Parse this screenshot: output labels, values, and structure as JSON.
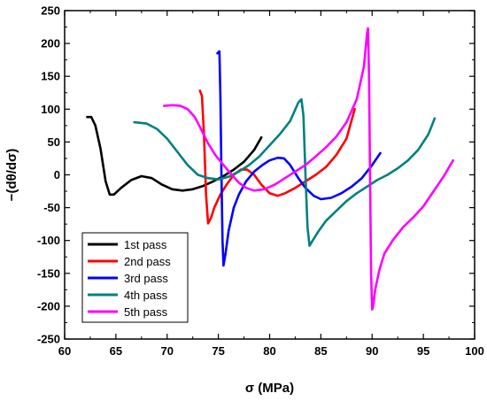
{
  "chart_data": {
    "type": "line",
    "title": "",
    "xlabel": "σ (MPa)",
    "ylabel": "−(dθ/dσ)",
    "xlim": [
      60,
      100
    ],
    "ylim": [
      -250,
      250
    ],
    "xticks": [
      60,
      65,
      70,
      75,
      80,
      85,
      90,
      95,
      100
    ],
    "yticks": [
      -250,
      -200,
      -150,
      -100,
      -50,
      0,
      50,
      100,
      150,
      200,
      250
    ],
    "grid": false,
    "legend_position": "bottom-left",
    "series": [
      {
        "name": "1st pass",
        "color": "#000000",
        "points": [
          [
            62.2,
            88
          ],
          [
            62.6,
            88
          ],
          [
            63.0,
            75
          ],
          [
            63.5,
            40
          ],
          [
            64.0,
            -10
          ],
          [
            64.4,
            -30
          ],
          [
            64.8,
            -30
          ],
          [
            65.5,
            -20
          ],
          [
            66.5,
            -8
          ],
          [
            67.5,
            -2
          ],
          [
            68.5,
            -5
          ],
          [
            69.5,
            -15
          ],
          [
            70.5,
            -22
          ],
          [
            71.5,
            -24
          ],
          [
            72.5,
            -22
          ],
          [
            73.5,
            -17
          ],
          [
            74.5,
            -10
          ],
          [
            75.5,
            -2
          ],
          [
            76.5,
            8
          ],
          [
            77.5,
            20
          ],
          [
            78.5,
            38
          ],
          [
            79.2,
            57
          ]
        ]
      },
      {
        "name": "2nd pass",
        "color": "#ff0000",
        "points": [
          [
            73.2,
            128
          ],
          [
            73.4,
            120
          ],
          [
            73.6,
            60
          ],
          [
            73.8,
            -30
          ],
          [
            74.0,
            -74
          ],
          [
            74.3,
            -65
          ],
          [
            74.6,
            -50
          ],
          [
            75.2,
            -30
          ],
          [
            75.8,
            -15
          ],
          [
            76.5,
            0
          ],
          [
            77.2,
            8
          ],
          [
            77.8,
            8
          ],
          [
            78.5,
            0
          ],
          [
            79.2,
            -15
          ],
          [
            80.0,
            -28
          ],
          [
            80.8,
            -32
          ],
          [
            81.5,
            -28
          ],
          [
            82.5,
            -20
          ],
          [
            83.5,
            -10
          ],
          [
            84.5,
            0
          ],
          [
            85.5,
            12
          ],
          [
            86.5,
            30
          ],
          [
            87.5,
            55
          ],
          [
            88.3,
            100
          ]
        ]
      },
      {
        "name": "3rd pass",
        "color": "#0000ff",
        "points": [
          [
            74.9,
            185
          ],
          [
            75.1,
            188
          ],
          [
            75.2,
            120
          ],
          [
            75.3,
            0
          ],
          [
            75.4,
            -100
          ],
          [
            75.5,
            -138
          ],
          [
            75.7,
            -120
          ],
          [
            76.0,
            -85
          ],
          [
            76.5,
            -50
          ],
          [
            77.0,
            -30
          ],
          [
            77.7,
            -10
          ],
          [
            78.5,
            5
          ],
          [
            79.3,
            15
          ],
          [
            80.0,
            22
          ],
          [
            80.8,
            26
          ],
          [
            81.4,
            25
          ],
          [
            82.0,
            15
          ],
          [
            82.8,
            -5
          ],
          [
            83.5,
            -20
          ],
          [
            84.3,
            -32
          ],
          [
            85.0,
            -37
          ],
          [
            86.0,
            -35
          ],
          [
            87.0,
            -28
          ],
          [
            88.0,
            -18
          ],
          [
            89.0,
            -5
          ],
          [
            90.0,
            15
          ],
          [
            90.8,
            33
          ]
        ]
      },
      {
        "name": "4th pass",
        "color": "#008080",
        "points": [
          [
            66.8,
            80
          ],
          [
            68.0,
            78
          ],
          [
            69.0,
            70
          ],
          [
            70.0,
            55
          ],
          [
            71.0,
            35
          ],
          [
            72.0,
            15
          ],
          [
            73.0,
            0
          ],
          [
            74.0,
            -5
          ],
          [
            75.0,
            -7
          ],
          [
            76.0,
            -3
          ],
          [
            77.0,
            5
          ],
          [
            78.0,
            15
          ],
          [
            79.0,
            28
          ],
          [
            80.0,
            45
          ],
          [
            81.0,
            62
          ],
          [
            82.0,
            82
          ],
          [
            82.8,
            110
          ],
          [
            83.1,
            115
          ],
          [
            83.3,
            90
          ],
          [
            83.5,
            0
          ],
          [
            83.7,
            -80
          ],
          [
            83.9,
            -108
          ],
          [
            84.2,
            -100
          ],
          [
            84.8,
            -85
          ],
          [
            85.5,
            -70
          ],
          [
            86.5,
            -55
          ],
          [
            87.5,
            -40
          ],
          [
            88.5,
            -28
          ],
          [
            89.5,
            -18
          ],
          [
            90.5,
            -8
          ],
          [
            91.5,
            0
          ],
          [
            92.5,
            10
          ],
          [
            93.5,
            22
          ],
          [
            94.5,
            38
          ],
          [
            95.5,
            62
          ],
          [
            96.1,
            86
          ]
        ]
      },
      {
        "name": "5th pass",
        "color": "#ff00ff",
        "points": [
          [
            69.7,
            105
          ],
          [
            70.5,
            106
          ],
          [
            71.3,
            105
          ],
          [
            72.0,
            100
          ],
          [
            72.7,
            88
          ],
          [
            73.3,
            70
          ],
          [
            74.0,
            48
          ],
          [
            74.7,
            30
          ],
          [
            75.5,
            15
          ],
          [
            76.3,
            0
          ],
          [
            77.0,
            -12
          ],
          [
            77.7,
            -20
          ],
          [
            78.5,
            -24
          ],
          [
            79.5,
            -22
          ],
          [
            80.5,
            -15
          ],
          [
            81.5,
            -5
          ],
          [
            82.5,
            5
          ],
          [
            83.5,
            15
          ],
          [
            84.5,
            28
          ],
          [
            85.5,
            42
          ],
          [
            86.5,
            58
          ],
          [
            87.5,
            80
          ],
          [
            88.5,
            115
          ],
          [
            89.2,
            165
          ],
          [
            89.5,
            215
          ],
          [
            89.6,
            223
          ],
          [
            89.7,
            150
          ],
          [
            89.8,
            0
          ],
          [
            89.9,
            -150
          ],
          [
            90.0,
            -205
          ],
          [
            90.1,
            -200
          ],
          [
            90.3,
            -175
          ],
          [
            90.7,
            -145
          ],
          [
            91.2,
            -120
          ],
          [
            92.0,
            -100
          ],
          [
            93.0,
            -80
          ],
          [
            94.0,
            -65
          ],
          [
            95.0,
            -48
          ],
          [
            96.0,
            -25
          ],
          [
            97.0,
            -2
          ],
          [
            97.9,
            22
          ]
        ]
      }
    ]
  }
}
